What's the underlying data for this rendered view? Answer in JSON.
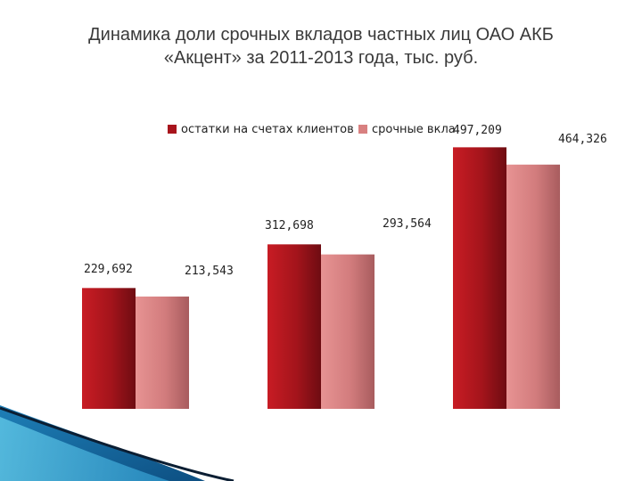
{
  "chart_data": {
    "type": "bar",
    "title": [
      "Динамика доли срочных вкладов частных лиц ОАО АКБ",
      "«Акцент» за 2011-2013 года, тыс. руб."
    ],
    "categories": [
      "",
      "",
      ""
    ],
    "series": [
      {
        "name": "остатки на счетах клиентов",
        "color": "#a8141c",
        "values": [
          229692,
          312698,
          497209
        ]
      },
      {
        "name": "срочные вкла",
        "color": "#d88080",
        "values": [
          213543,
          293564,
          464326
        ]
      }
    ],
    "data_labels": [
      [
        "229,692",
        "312,698",
        "497,209"
      ],
      [
        "213,543",
        "293,564",
        "464,326"
      ]
    ],
    "ylim": [
      0,
      530000
    ],
    "xlabel": "",
    "ylabel": "",
    "grid": false,
    "legend": "top"
  }
}
